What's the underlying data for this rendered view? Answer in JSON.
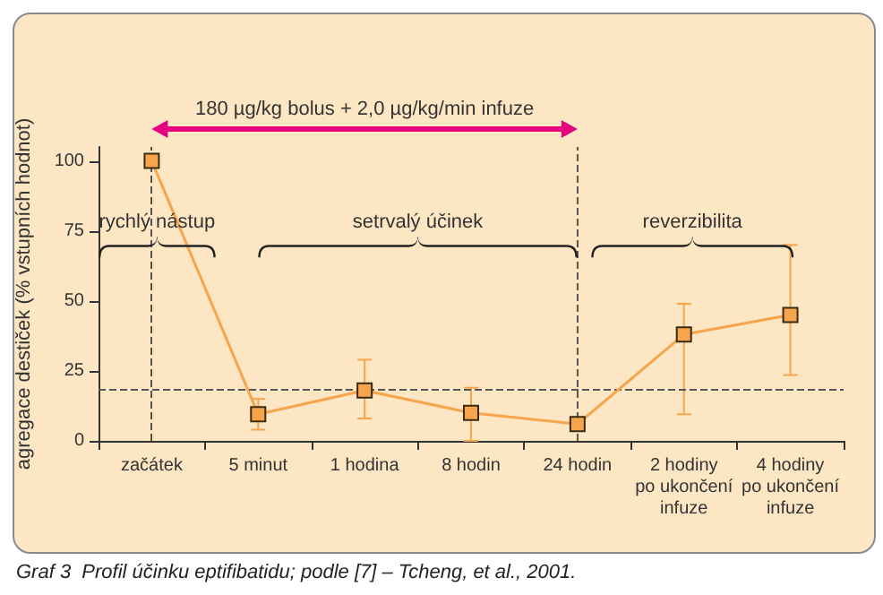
{
  "chart_data": {
    "type": "line",
    "title": "Graf 3  Profil účinku eptifibatidu; podle [7] – Tcheng, et al., 2001.",
    "ylabel": "agregace destiček (% vstupních hodnot)",
    "categories": [
      "začátek",
      "5 minut",
      "1 hodina",
      "8 hodin",
      "24 hodin",
      "2 hodiny\npo ukončení\ninfuze",
      "4 hodiny\npo ukončení\ninfuze"
    ],
    "series": [
      {
        "color": "#f7a54c",
        "values": [
          100,
          9.5,
          18,
          10,
          6,
          38,
          45
        ],
        "errors": [
          null,
          [
            4,
            15
          ],
          [
            8,
            29
          ],
          [
            0,
            19
          ],
          null,
          [
            9.5,
            49
          ],
          [
            23.5,
            70
          ]
        ]
      }
    ],
    "marker": "square",
    "line_style": "solid",
    "ylim": [
      0,
      105
    ],
    "yticks": [
      0,
      25,
      50,
      75,
      100
    ],
    "grid": false,
    "ref_lines": [
      {
        "axis": "y",
        "value": 18.5,
        "color": "#555555",
        "line_style": "dashed"
      },
      {
        "axis": "x",
        "value": "začátek",
        "color": "#555555",
        "line_style": "dashed"
      },
      {
        "axis": "x",
        "value": "24 hodin",
        "color": "#555555",
        "line_style": "dashed"
      }
    ],
    "annotations": [
      "rychlý nástup",
      "setrvalý účinek",
      "reverzibilita",
      "180 µg/kg bolus + 2,0 µg/kg/min infuze"
    ]
  }
}
